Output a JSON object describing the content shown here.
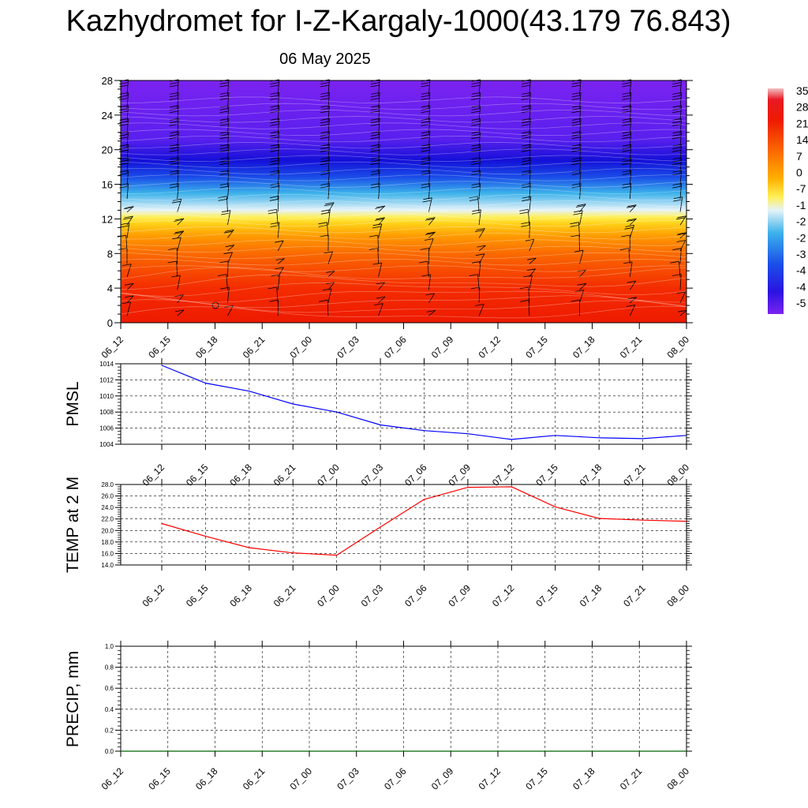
{
  "header": {
    "title": "Kazhydromet for I-Z-Kargaly-1000(43.179 76.843)",
    "date": "06 May 2025"
  },
  "chart_data": [
    {
      "type": "heatmap",
      "title": "",
      "ylabel": "",
      "xlabel": "",
      "x_tick_labels": [
        "06_12",
        "06_15",
        "06_18",
        "06_21",
        "07_00",
        "07_03",
        "07_06",
        "07_09",
        "07_12",
        "07_15",
        "07_18",
        "07_21",
        "08_00"
      ],
      "y_ticks": [
        0,
        4,
        8,
        12,
        16,
        20,
        24,
        28
      ],
      "ylim": [
        0,
        28
      ],
      "colorbar_labels": [
        "35",
        "28",
        "21",
        "14",
        "7",
        "0",
        "-7",
        "-1",
        "-2",
        "-2",
        "-3",
        "-4",
        "-4",
        "-5"
      ],
      "colors": {
        "band_0": "#ee1a00",
        "band_4": "#f42c00",
        "band_8": "#fa6a00",
        "band_10": "#ff9a00",
        "band_12": "#ffe32a",
        "band_13": "#e6f3f9",
        "band_15": "#3cb2ea",
        "band_17": "#1a4ee8",
        "band_19": "#1410d8",
        "band_22": "#5a20ee",
        "band_28": "#7b22f0"
      },
      "wind_barbs": true
    },
    {
      "type": "line",
      "ylabel": "PMSL",
      "x_tick_labels": [
        "06_12",
        "06_15",
        "06_18",
        "06_21",
        "07_00",
        "07_03",
        "07_06",
        "07_09",
        "07_12",
        "07_15",
        "07_18",
        "07_21",
        "08_00"
      ],
      "y_tick_labels": [
        "1004",
        "1006",
        "1008",
        "1010",
        "1012",
        "1014"
      ],
      "ylim": [
        1004,
        1014
      ],
      "series": [
        {
          "color": "#0000ff",
          "values": [
            1013.8,
            1011.6,
            1010.6,
            1009.0,
            1008.0,
            1006.4,
            1005.7,
            1005.3,
            1004.6,
            1005.1,
            1004.8,
            1004.7,
            1005.1
          ]
        }
      ],
      "grid": true
    },
    {
      "type": "line",
      "ylabel": "TEMP at 2 M",
      "x_tick_labels": [
        "06_12",
        "06_15",
        "06_18",
        "06_21",
        "07_00",
        "07_03",
        "07_06",
        "07_09",
        "07_12",
        "07_15",
        "07_18",
        "07_21",
        "08_00"
      ],
      "y_tick_labels": [
        "14.0",
        "16.0",
        "18.0",
        "20.0",
        "22.0",
        "24.0",
        "26.0",
        "28.0"
      ],
      "ylim": [
        14,
        28
      ],
      "series": [
        {
          "color": "#ff0000",
          "values": [
            21.2,
            19.0,
            17.0,
            16.1,
            15.7,
            20.6,
            25.4,
            27.5,
            27.6,
            24.1,
            22.1,
            21.8,
            21.6
          ]
        }
      ],
      "grid": true
    },
    {
      "type": "line",
      "ylabel": "PRECIP, mm",
      "x_tick_labels": [
        "06_12",
        "06_15",
        "06_18",
        "06_21",
        "07_00",
        "07_03",
        "07_06",
        "07_09",
        "07_12",
        "07_15",
        "07_18",
        "07_21",
        "08_00"
      ],
      "y_tick_labels": [
        "0.0",
        "0.2",
        "0.4",
        "0.6",
        "0.8",
        "1.0"
      ],
      "ylim": [
        0,
        1
      ],
      "series": [
        {
          "color": "#006400",
          "values": [
            0,
            0,
            0,
            0,
            0,
            0,
            0,
            0,
            0,
            0,
            0,
            0,
            0
          ]
        }
      ],
      "grid": true
    }
  ]
}
